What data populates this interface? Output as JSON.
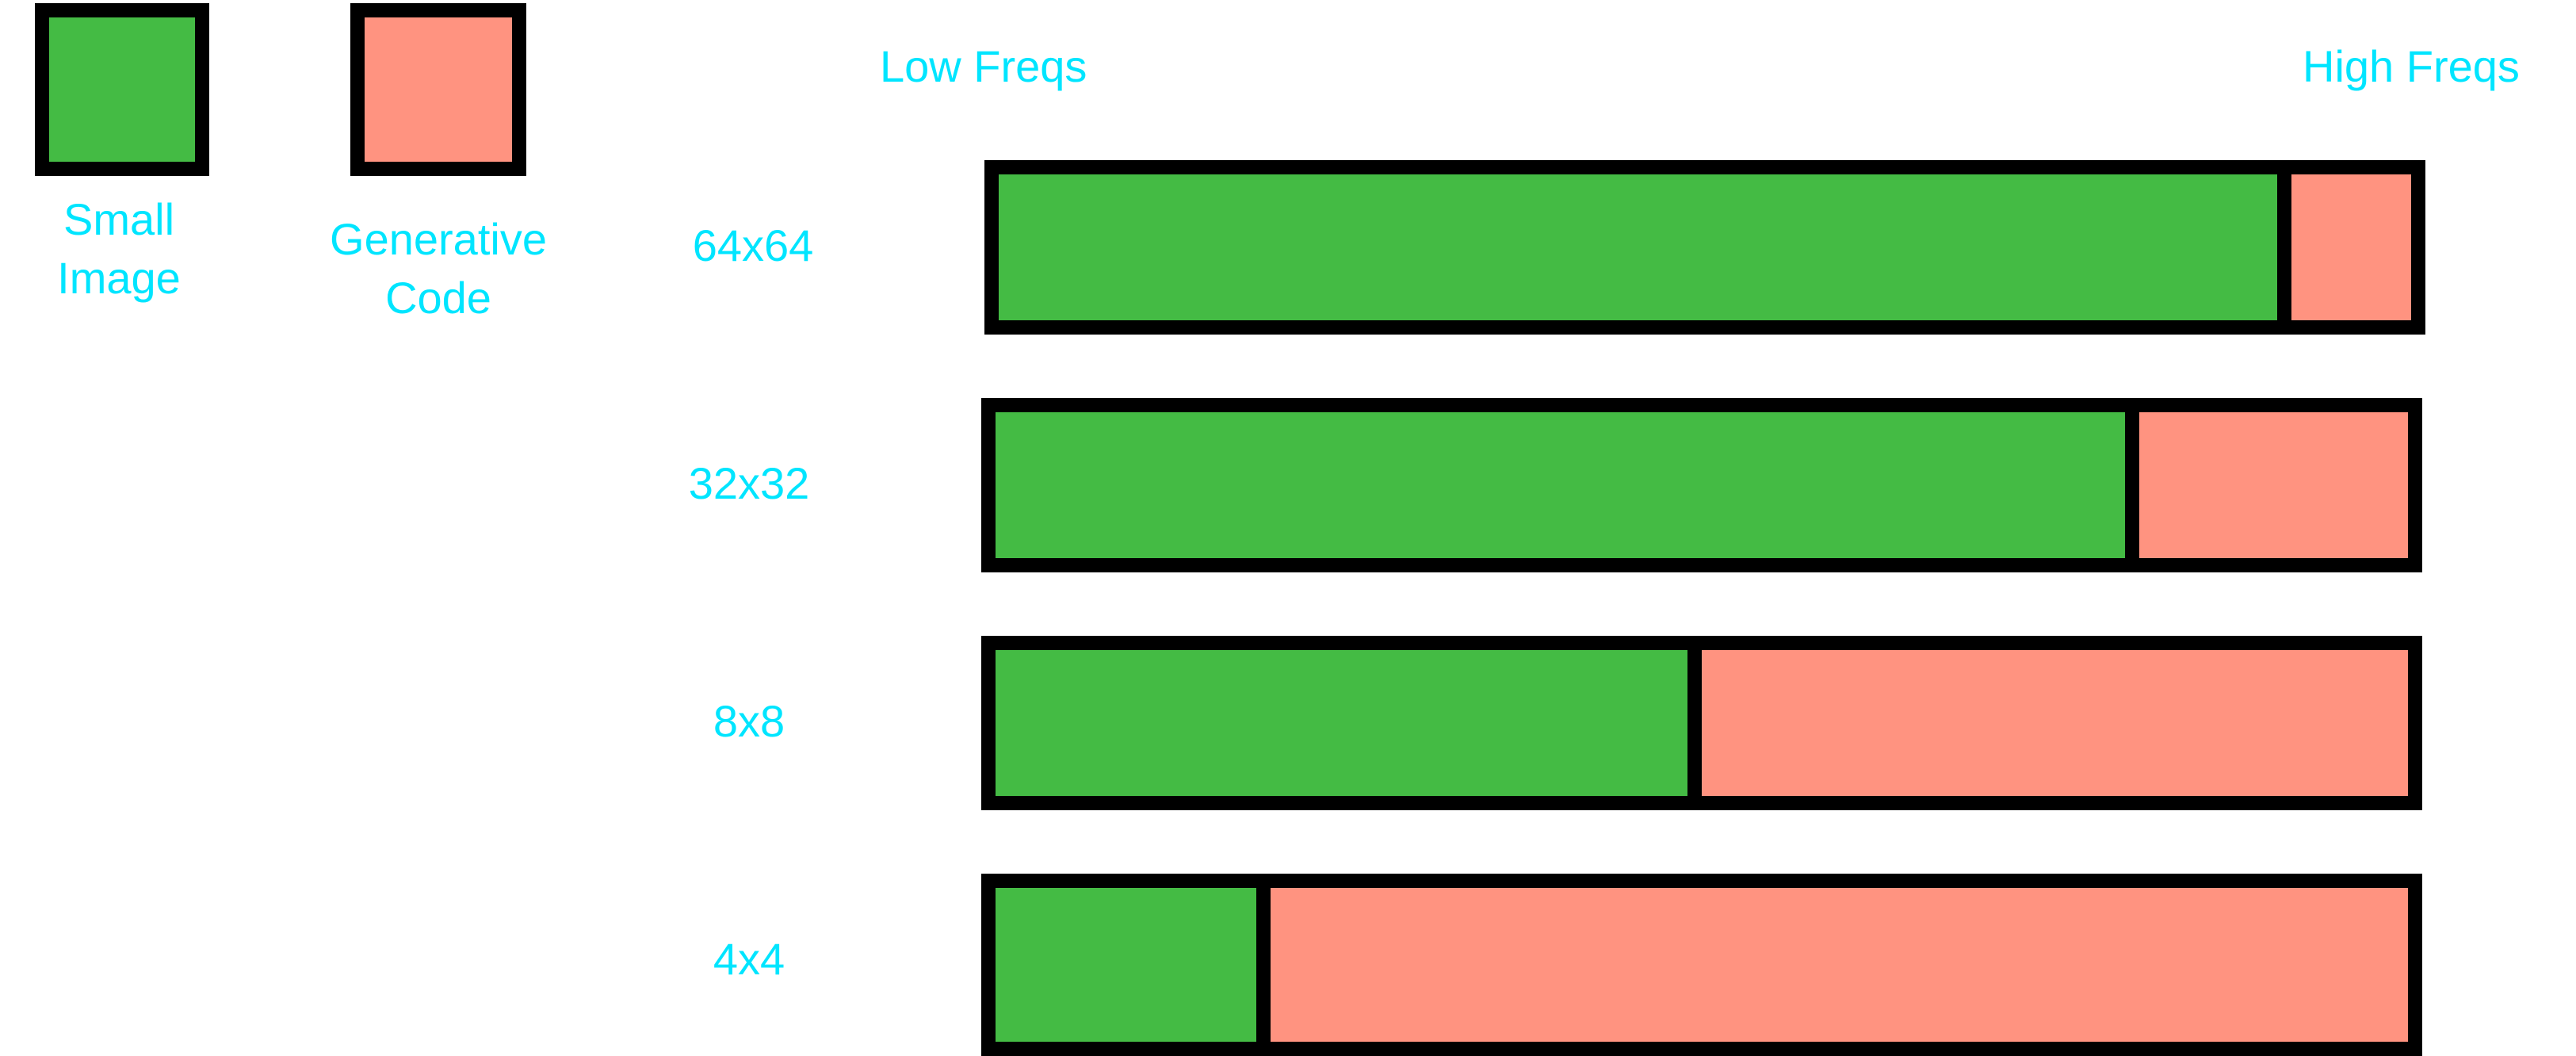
{
  "colors": {
    "small_image": "#44bb44",
    "generative_code": "#ff9380",
    "text": "#00e5ff",
    "border": "#000000"
  },
  "legend": {
    "small_image": {
      "line1": "Small",
      "line2": "Image"
    },
    "generative_code": {
      "line1": "Generative",
      "line2": "Code"
    }
  },
  "axis": {
    "low_label": "Low Freqs",
    "high_label": "High Freqs"
  },
  "rows": [
    {
      "label": "64x64",
      "small_image_fraction": 0.915
    },
    {
      "label": "32x32",
      "small_image_fraction": 0.81
    },
    {
      "label": "8x8",
      "small_image_fraction": 0.5
    },
    {
      "label": "4x4",
      "small_image_fraction": 0.195
    }
  ]
}
